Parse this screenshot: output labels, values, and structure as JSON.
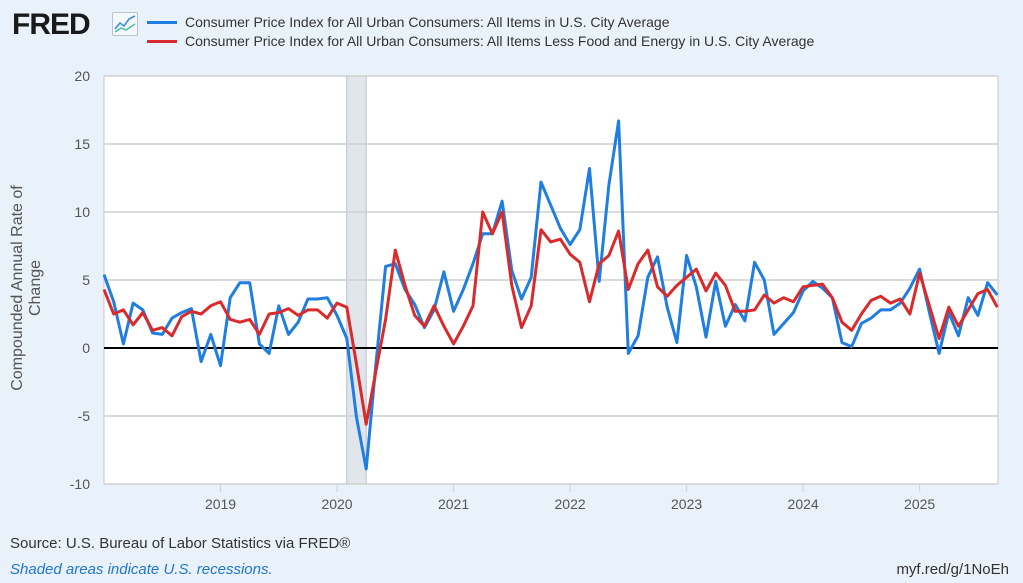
{
  "header": {
    "logo": "FRED"
  },
  "chart_data": {
    "type": "line",
    "title": "",
    "xlabel": "",
    "ylabel": "Compounded Annual Rate of Change",
    "ylim": [
      -10,
      20
    ],
    "yticks": [
      "20",
      "15",
      "10",
      "5",
      "0",
      "-5",
      "-10"
    ],
    "xticks": [
      "2019",
      "2020",
      "2021",
      "2022",
      "2023",
      "2024",
      "2025"
    ],
    "x_start": "2018-01",
    "x_end": "2025-09",
    "frequency": "monthly",
    "recession": {
      "start": "2020-02",
      "end": "2020-04"
    },
    "legend_position": "top",
    "series": [
      {
        "name": "Consumer Price Index for All Urban Consumers: All Items in U.S. City Average",
        "color": "#1f7ee0",
        "values": [
          5.4,
          3.4,
          0.3,
          3.3,
          2.8,
          1.1,
          1.0,
          2.2,
          2.6,
          2.9,
          -1.0,
          1.0,
          -1.3,
          3.7,
          4.8,
          4.8,
          0.3,
          -0.4,
          3.1,
          1.0,
          1.9,
          3.6,
          3.6,
          3.7,
          2.4,
          0.7,
          -5.1,
          -8.9,
          -1.2,
          6.0,
          6.2,
          4.3,
          3.2,
          1.5,
          2.8,
          5.6,
          2.7,
          4.3,
          6.2,
          8.4,
          8.4,
          10.8,
          5.7,
          3.6,
          5.2,
          12.2,
          10.5,
          8.8,
          7.6,
          8.7,
          13.2,
          4.9,
          12.0,
          16.7,
          -0.4,
          0.9,
          5.2,
          6.7,
          3.0,
          0.4,
          6.8,
          4.5,
          0.8,
          4.9,
          1.6,
          3.2,
          2.0,
          6.3,
          5.0,
          1.0,
          1.8,
          2.6,
          4.2,
          4.9,
          4.4,
          3.7,
          0.4,
          0.1,
          1.8,
          2.2,
          2.8,
          2.8,
          3.3,
          4.4,
          5.8,
          2.6,
          -0.4,
          2.6,
          0.9,
          3.7,
          2.4,
          4.8,
          3.9
        ]
      },
      {
        "name": "Consumer Price Index for All Urban Consumers: All Items Less Food and Energy in U.S. City Average",
        "color": "#d92b2b",
        "values": [
          4.3,
          2.5,
          2.8,
          1.7,
          2.6,
          1.3,
          1.5,
          0.9,
          2.3,
          2.7,
          2.5,
          3.1,
          3.4,
          2.1,
          1.9,
          2.1,
          1.0,
          2.5,
          2.6,
          2.9,
          2.4,
          2.8,
          2.8,
          2.2,
          3.3,
          3.0,
          -1.2,
          -5.6,
          -1.7,
          2.1,
          7.2,
          4.6,
          2.4,
          1.6,
          3.1,
          1.6,
          0.3,
          1.6,
          3.1,
          10.0,
          8.4,
          10.0,
          4.6,
          1.5,
          3.1,
          8.7,
          7.8,
          8.0,
          6.9,
          6.3,
          3.4,
          6.2,
          6.8,
          8.6,
          4.3,
          6.2,
          7.2,
          4.5,
          3.8,
          4.6,
          5.2,
          5.8,
          4.2,
          5.5,
          4.6,
          2.7,
          2.7,
          2.8,
          3.9,
          3.3,
          3.7,
          3.4,
          4.5,
          4.6,
          4.7,
          3.7,
          1.9,
          1.3,
          2.5,
          3.5,
          3.8,
          3.3,
          3.6,
          2.5,
          5.5,
          3.1,
          0.7,
          3.0,
          1.6,
          2.8,
          4.0,
          4.3,
          3.0
        ]
      }
    ]
  },
  "footer": {
    "source": "Source: U.S. Bureau of Labor Statistics via FRED®",
    "note": "Shaded areas indicate U.S. recessions.",
    "short_url": "myf.red/g/1NoEh"
  }
}
